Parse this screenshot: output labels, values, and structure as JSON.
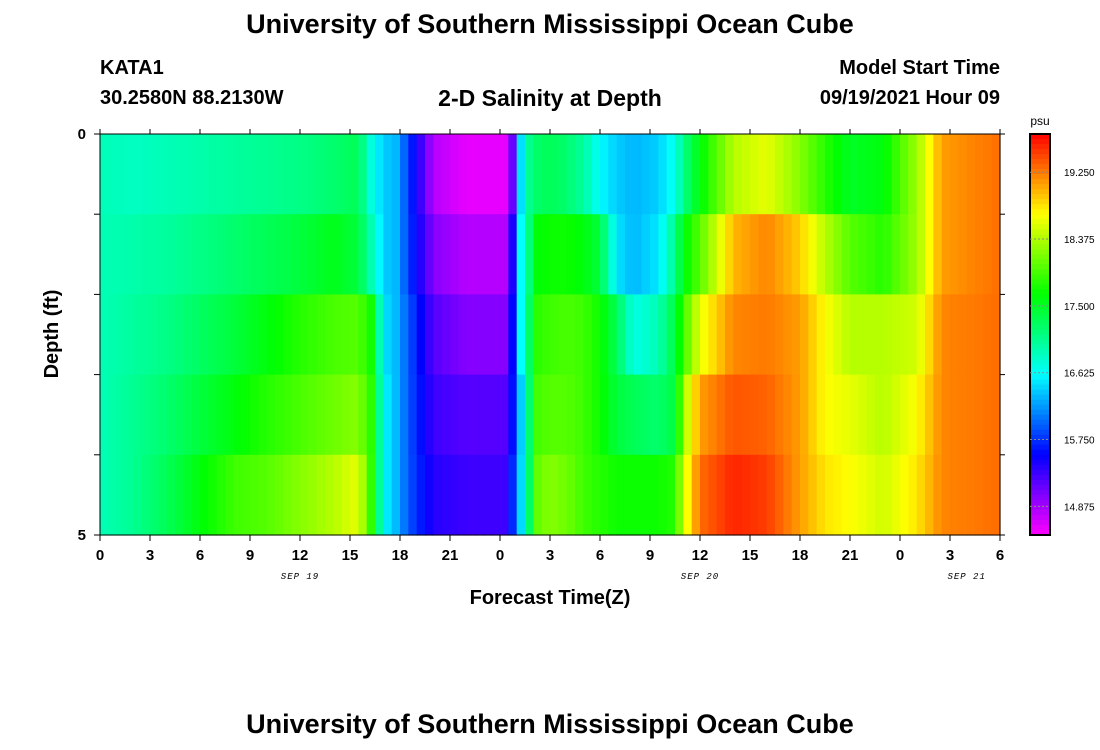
{
  "header": {
    "title": "University of Southern Mississippi Ocean Cube",
    "station": "KATA1",
    "coords": "30.2580N  88.2130W",
    "subtitle": "2-D Salinity at Depth",
    "model_label": "Model Start Time",
    "model_time": "09/19/2021 Hour 09"
  },
  "footer": {
    "title": "University of Southern Mississippi Ocean Cube"
  },
  "chart_data": {
    "type": "heatmap",
    "title": "2-D Salinity at Depth",
    "xlabel": "Forecast Time(Z)",
    "ylabel": "Depth (ft)",
    "x_start_hour": 0,
    "x_end_hour": 54,
    "x_ticks": [
      {
        "hour": 0,
        "label": "0"
      },
      {
        "hour": 3,
        "label": "3"
      },
      {
        "hour": 6,
        "label": "6"
      },
      {
        "hour": 9,
        "label": "9"
      },
      {
        "hour": 12,
        "label": "12"
      },
      {
        "hour": 15,
        "label": "15"
      },
      {
        "hour": 18,
        "label": "18"
      },
      {
        "hour": 21,
        "label": "21"
      },
      {
        "hour": 24,
        "label": "0"
      },
      {
        "hour": 27,
        "label": "3"
      },
      {
        "hour": 30,
        "label": "6"
      },
      {
        "hour": 33,
        "label": "9"
      },
      {
        "hour": 36,
        "label": "12"
      },
      {
        "hour": 39,
        "label": "15"
      },
      {
        "hour": 42,
        "label": "18"
      },
      {
        "hour": 45,
        "label": "21"
      },
      {
        "hour": 48,
        "label": "0"
      },
      {
        "hour": 51,
        "label": "3"
      },
      {
        "hour": 54,
        "label": "6"
      }
    ],
    "date_labels": [
      {
        "hour": 12,
        "label": "SEP 19"
      },
      {
        "hour": 36,
        "label": "SEP 20"
      },
      {
        "hour": 52,
        "label": "SEP 21"
      }
    ],
    "y_range": [
      0,
      5
    ],
    "y_ticks": [
      {
        "value": 0,
        "label": "0"
      },
      {
        "value": 5,
        "label": "5"
      }
    ],
    "depth_levels": [
      0.5,
      1.5,
      2.5,
      3.5,
      4.5
    ],
    "colorbar": {
      "unit": "psu",
      "min": 14.5,
      "max": 19.75,
      "ticks": [
        "14.875",
        "15.750",
        "16.625",
        "17.500",
        "18.375",
        "19.250"
      ]
    },
    "salinity_keyframes": [
      {
        "hour": 0,
        "values": [
          16.9,
          16.9,
          16.9,
          16.9,
          16.9
        ]
      },
      {
        "hour": 2,
        "values": [
          16.85,
          16.95,
          17.0,
          17.05,
          17.05
        ]
      },
      {
        "hour": 4,
        "values": [
          16.9,
          17.0,
          17.1,
          17.2,
          17.3
        ]
      },
      {
        "hour": 6,
        "values": [
          16.95,
          17.1,
          17.25,
          17.4,
          17.6
        ]
      },
      {
        "hour": 8,
        "values": [
          17.0,
          17.2,
          17.4,
          17.6,
          17.9
        ]
      },
      {
        "hour": 10,
        "values": [
          17.05,
          17.3,
          17.6,
          17.8,
          18.0
        ]
      },
      {
        "hour": 12,
        "values": [
          17.1,
          17.4,
          17.8,
          17.95,
          18.2
        ]
      },
      {
        "hour": 14,
        "values": [
          17.2,
          17.55,
          17.95,
          18.1,
          18.4
        ]
      },
      {
        "hour": 15.5,
        "values": [
          17.3,
          17.4,
          18.0,
          18.2,
          18.6
        ]
      },
      {
        "hour": 16.3,
        "values": [
          16.7,
          16.9,
          17.7,
          17.8,
          17.8
        ]
      },
      {
        "hour": 17,
        "values": [
          16.4,
          16.4,
          16.5,
          16.6,
          16.6
        ]
      },
      {
        "hour": 17.8,
        "values": [
          16.3,
          16.3,
          16.3,
          16.3,
          16.3
        ]
      },
      {
        "hour": 18.5,
        "values": [
          15.8,
          15.8,
          15.9,
          15.9,
          15.9
        ]
      },
      {
        "hour": 20,
        "values": [
          14.8,
          15.0,
          15.2,
          15.3,
          15.4
        ]
      },
      {
        "hour": 22,
        "values": [
          14.6,
          14.8,
          15.0,
          15.2,
          15.3
        ]
      },
      {
        "hour": 24.6,
        "values": [
          14.6,
          14.8,
          15.0,
          15.2,
          15.3
        ]
      },
      {
        "hour": 25,
        "values": [
          16.0,
          16.5,
          16.5,
          16.3,
          16.4
        ]
      },
      {
        "hour": 25.5,
        "values": [
          16.95,
          16.7,
          16.7,
          16.5,
          16.5
        ]
      },
      {
        "hour": 26,
        "values": [
          17.2,
          17.6,
          17.8,
          17.9,
          18.0
        ]
      },
      {
        "hour": 27,
        "values": [
          17.3,
          17.7,
          17.9,
          18.0,
          18.2
        ]
      },
      {
        "hour": 28,
        "values": [
          17.2,
          17.7,
          17.95,
          18.0,
          18.1
        ]
      },
      {
        "hour": 29,
        "values": [
          17.0,
          17.6,
          17.9,
          17.9,
          17.9
        ]
      },
      {
        "hour": 30,
        "values": [
          16.6,
          17.4,
          17.7,
          17.7,
          17.8
        ]
      },
      {
        "hour": 31,
        "values": [
          16.4,
          16.5,
          17.3,
          17.4,
          17.7
        ]
      },
      {
        "hour": 32,
        "values": [
          16.3,
          16.3,
          16.7,
          17.3,
          17.7
        ]
      },
      {
        "hour": 33.5,
        "values": [
          16.4,
          16.5,
          16.9,
          17.2,
          17.7
        ]
      },
      {
        "hour": 34.5,
        "values": [
          16.7,
          17.1,
          17.4,
          17.4,
          17.8
        ]
      },
      {
        "hour": 35,
        "values": [
          17.1,
          17.6,
          17.9,
          18.3,
          18.5
        ]
      },
      {
        "hour": 36,
        "values": [
          17.6,
          18.0,
          18.6,
          19.1,
          19.3
        ]
      },
      {
        "hour": 38,
        "values": [
          18.4,
          19.0,
          19.2,
          19.4,
          19.6
        ]
      },
      {
        "hour": 40,
        "values": [
          18.6,
          19.2,
          19.25,
          19.35,
          19.5
        ]
      },
      {
        "hour": 42,
        "values": [
          18.2,
          18.9,
          19.1,
          19.1,
          19.1
        ]
      },
      {
        "hour": 43.5,
        "values": [
          17.8,
          18.4,
          18.7,
          18.7,
          18.8
        ]
      },
      {
        "hour": 45,
        "values": [
          17.5,
          18.0,
          18.4,
          18.6,
          18.7
        ]
      },
      {
        "hour": 47,
        "values": [
          17.6,
          17.8,
          18.4,
          18.4,
          18.5
        ]
      },
      {
        "hour": 49,
        "values": [
          18.3,
          18.3,
          18.5,
          18.7,
          18.8
        ]
      },
      {
        "hour": 50.5,
        "values": [
          19.1,
          19.1,
          19.2,
          19.2,
          19.2
        ]
      },
      {
        "hour": 54,
        "values": [
          19.3,
          19.3,
          19.3,
          19.3,
          19.3
        ]
      }
    ]
  }
}
